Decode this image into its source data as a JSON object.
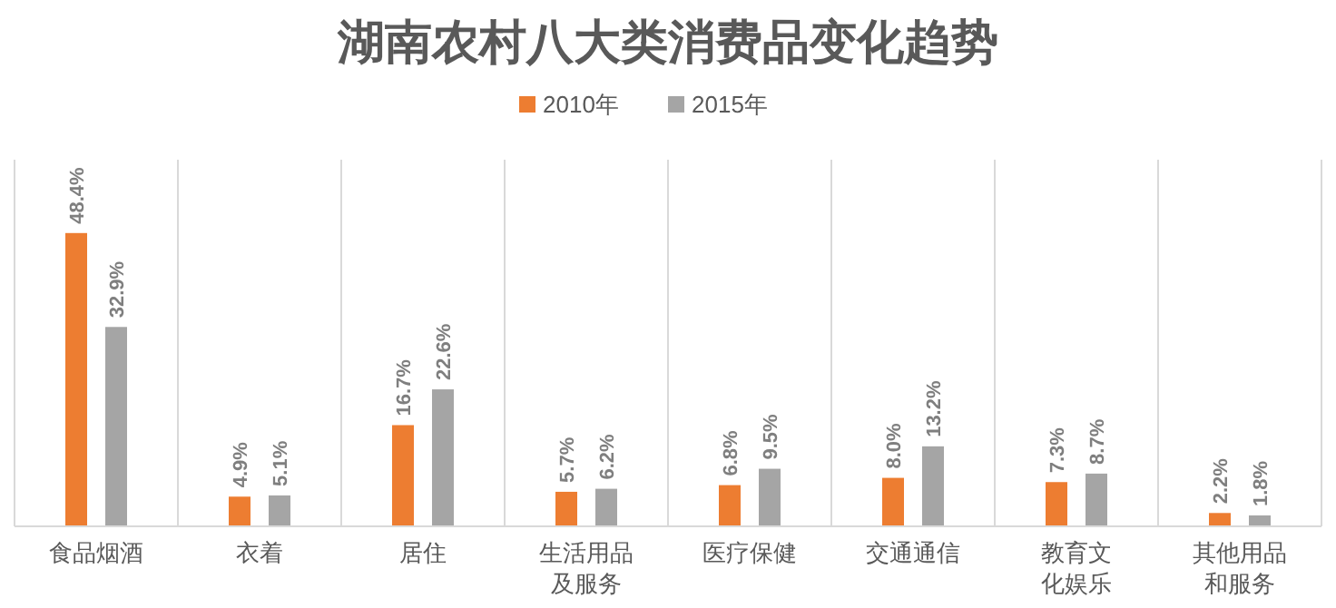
{
  "chart_data": {
    "type": "bar",
    "title": "湖南农村八大类消费品变化趋势",
    "categories": [
      "食品烟酒",
      "衣着",
      "居住",
      "生活用品及服务",
      "医疗保健",
      "交通通信",
      "教育文化娱乐",
      "其他用品和服务"
    ],
    "series": [
      {
        "name": "2010年",
        "color": "#ed7d31",
        "values": [
          48.4,
          4.9,
          16.7,
          5.7,
          6.8,
          8.0,
          7.3,
          2.2
        ],
        "value_labels": [
          "48.4%",
          "4.9%",
          "16.7%",
          "5.7%",
          "6.8%",
          "8.0%",
          "7.3%",
          "2.2%"
        ]
      },
      {
        "name": "2015年",
        "color": "#a5a5a5",
        "values": [
          32.9,
          5.1,
          22.6,
          6.2,
          9.5,
          13.2,
          8.7,
          1.8
        ],
        "value_labels": [
          "32.9%",
          "5.1%",
          "22.6%",
          "6.2%",
          "9.5%",
          "13.2%",
          "8.7%",
          "1.8%"
        ]
      }
    ],
    "grid": "x",
    "legend": "top"
  }
}
